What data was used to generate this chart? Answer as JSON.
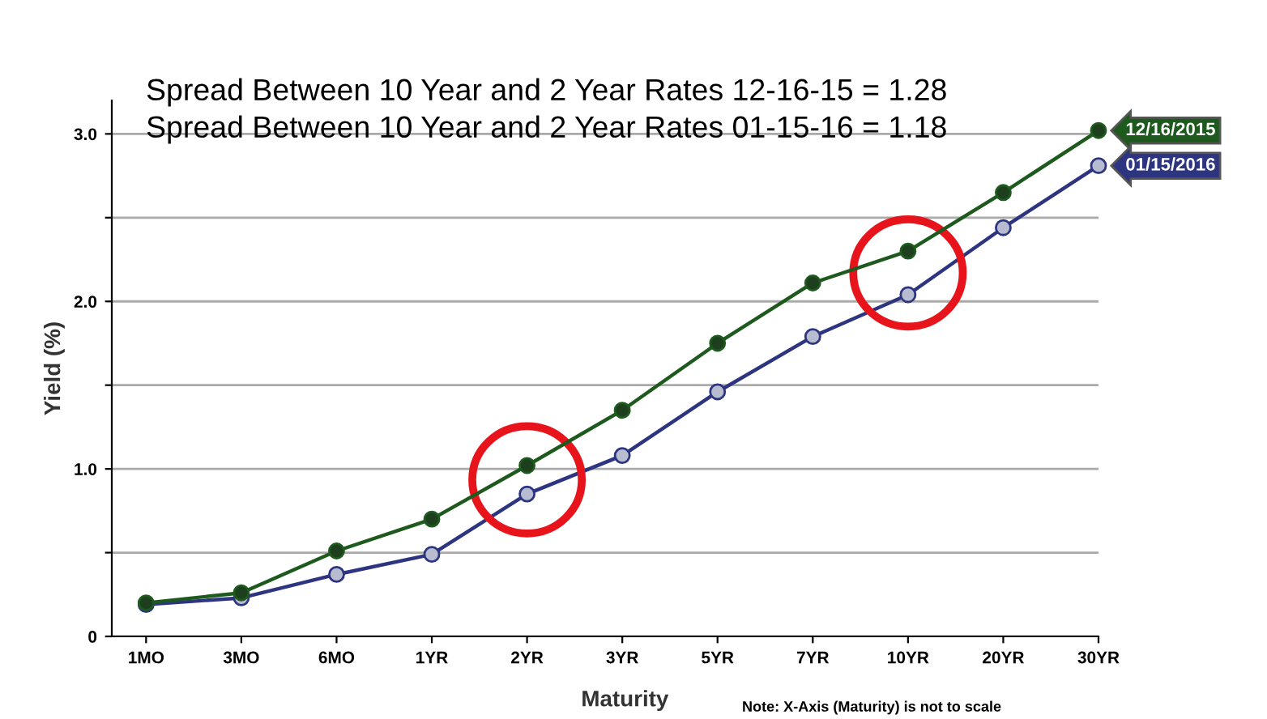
{
  "chart_data": {
    "type": "line",
    "categories": [
      "1MO",
      "3MO",
      "6MO",
      "1YR",
      "2YR",
      "3YR",
      "5YR",
      "7YR",
      "10YR",
      "20YR",
      "30YR"
    ],
    "series": [
      {
        "name": "12/16/2015",
        "color": "#1e5a1e",
        "values": [
          0.2,
          0.26,
          0.51,
          0.7,
          1.02,
          1.35,
          1.75,
          2.11,
          2.3,
          2.65,
          3.02
        ]
      },
      {
        "name": "01/15/2016",
        "color": "#2e3580",
        "values": [
          0.19,
          0.23,
          0.37,
          0.49,
          0.85,
          1.08,
          1.46,
          1.79,
          2.04,
          2.44,
          2.81
        ]
      }
    ],
    "xlabel": "Maturity",
    "ylabel": "Yield (%)",
    "ylim": [
      0,
      3.2
    ],
    "yticks": [
      0,
      {
        "value": 0.5,
        "label": null
      },
      {
        "value": 1.0,
        "label": "1.0"
      },
      {
        "value": 1.5,
        "label": null
      },
      {
        "value": 2.0,
        "label": "2.0"
      },
      {
        "value": 2.5,
        "label": null
      },
      {
        "value": 3.0,
        "label": "3.0"
      }
    ],
    "grid": "y",
    "marker": "circle",
    "line_style": "solid",
    "legend": false,
    "annotations": [
      "Spread Between 10 Year and 2 Year Rates 12-16-15 = 1.28",
      "Spread Between 10 Year and 2 Year Rates 01-15-16 = 1.18",
      "Note: X-Axis (Maturity) is not to scale"
    ]
  }
}
